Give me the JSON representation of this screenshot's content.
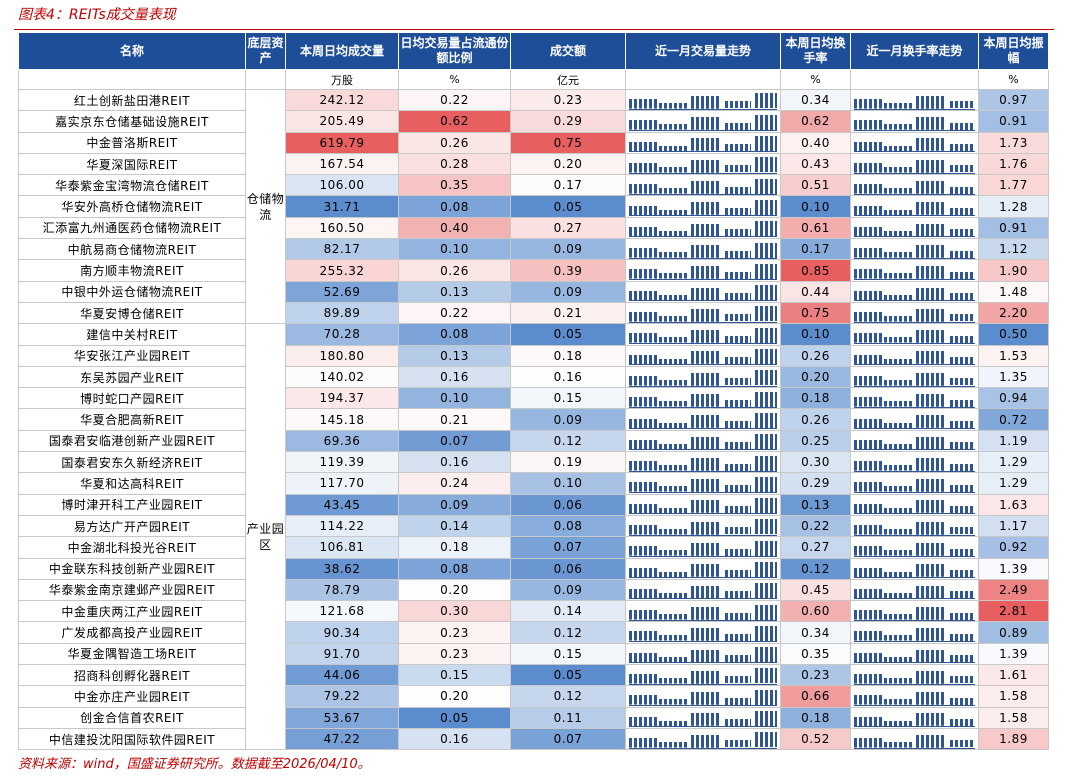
{
  "header": {
    "title": "图表4：REITs成交量表现"
  },
  "table": {
    "headers": {
      "name": "名称",
      "asset": "底层资产",
      "volume": "本周日均成交量",
      "ratio": "日均交易量占流通份额比例",
      "amount": "成交额",
      "volume_trend": "近一月交易量走势",
      "turnover": "本周日均换手率",
      "turnover_trend": "近一月换手率走势",
      "amplitude": "本周日均振幅"
    },
    "units": {
      "volume": "万股",
      "ratio": "%",
      "amount": "亿元",
      "turnover": "%",
      "amplitude": "%"
    },
    "groups": [
      {
        "label": "仓储物流",
        "rows": [
          [
            "红土创新盐田港REIT",
            "242.12",
            "0.22",
            "0.23",
            "0.34",
            "0.97"
          ],
          [
            "嘉实京东仓储基础设施REIT",
            "205.49",
            "0.62",
            "0.29",
            "0.62",
            "0.91"
          ],
          [
            "中金普洛斯REIT",
            "619.79",
            "0.26",
            "0.75",
            "0.40",
            "1.73"
          ],
          [
            "华夏深国际REIT",
            "167.54",
            "0.28",
            "0.20",
            "0.43",
            "1.76"
          ],
          [
            "华泰紫金宝湾物流仓储REIT",
            "106.00",
            "0.35",
            "0.17",
            "0.51",
            "1.77"
          ],
          [
            "华安外高桥仓储物流REIT",
            "31.71",
            "0.08",
            "0.05",
            "0.10",
            "1.28"
          ],
          [
            "汇添富九州通医药仓储物流REIT",
            "160.50",
            "0.40",
            "0.27",
            "0.61",
            "0.91"
          ],
          [
            "中航易商仓储物流REIT",
            "82.17",
            "0.10",
            "0.09",
            "0.17",
            "1.12"
          ],
          [
            "南方顺丰物流REIT",
            "255.32",
            "0.26",
            "0.39",
            "0.85",
            "1.90"
          ],
          [
            "中银中外运仓储物流REIT",
            "52.69",
            "0.13",
            "0.09",
            "0.44",
            "1.48"
          ],
          [
            "华夏安博仓储REIT",
            "89.89",
            "0.22",
            "0.21",
            "0.75",
            "2.20"
          ]
        ]
      },
      {
        "label": "产业园区",
        "rows": [
          [
            "建信中关村REIT",
            "70.28",
            "0.08",
            "0.05",
            "0.10",
            "0.50"
          ],
          [
            "华安张江产业园REIT",
            "180.80",
            "0.13",
            "0.18",
            "0.26",
            "1.53"
          ],
          [
            "东吴苏园产业REIT",
            "140.02",
            "0.16",
            "0.16",
            "0.20",
            "1.35"
          ],
          [
            "博时蛇口产园REIT",
            "194.37",
            "0.10",
            "0.15",
            "0.18",
            "0.94"
          ],
          [
            "华夏合肥高新REIT",
            "145.18",
            "0.21",
            "0.09",
            "0.26",
            "0.72"
          ],
          [
            "国泰君安临港创新产业园REIT",
            "69.36",
            "0.07",
            "0.12",
            "0.25",
            "1.19"
          ],
          [
            "国泰君安东久新经济REIT",
            "119.39",
            "0.16",
            "0.19",
            "0.30",
            "1.29"
          ],
          [
            "华夏和达高科REIT",
            "117.70",
            "0.24",
            "0.10",
            "0.29",
            "1.29"
          ],
          [
            "博时津开科工产业园REIT",
            "43.45",
            "0.09",
            "0.06",
            "0.13",
            "1.63"
          ],
          [
            "易方达广开产园REIT",
            "114.22",
            "0.14",
            "0.08",
            "0.22",
            "1.17"
          ],
          [
            "中金湖北科投光谷REIT",
            "106.81",
            "0.18",
            "0.07",
            "0.27",
            "0.92"
          ],
          [
            "中金联东科技创新产业园REIT",
            "38.62",
            "0.08",
            "0.06",
            "0.12",
            "1.39"
          ],
          [
            "华泰紫金南京建邺产业园REIT",
            "78.79",
            "0.20",
            "0.09",
            "0.45",
            "2.49"
          ],
          [
            "中金重庆两江产业园REIT",
            "121.68",
            "0.30",
            "0.14",
            "0.60",
            "2.81"
          ],
          [
            "广发成都高投产业园REIT",
            "90.34",
            "0.23",
            "0.12",
            "0.34",
            "0.89"
          ],
          [
            "华夏金隅智造工场REIT",
            "91.70",
            "0.23",
            "0.15",
            "0.35",
            "1.39"
          ],
          [
            "招商科创孵化器REIT",
            "44.06",
            "0.15",
            "0.05",
            "0.23",
            "1.61"
          ],
          [
            "中金亦庄产业园REIT",
            "79.22",
            "0.20",
            "0.12",
            "0.66",
            "1.58"
          ],
          [
            "创金合信首农REIT",
            "53.67",
            "0.05",
            "0.11",
            "0.18",
            "1.58"
          ],
          [
            "中信建投沈阳国际软件园REIT",
            "47.22",
            "0.16",
            "0.07",
            "0.52",
            "1.89"
          ]
        ]
      }
    ]
  },
  "footer": {
    "source": "资料来源：wind，国盛证券研究所。数据截至2026/04/10。"
  }
}
